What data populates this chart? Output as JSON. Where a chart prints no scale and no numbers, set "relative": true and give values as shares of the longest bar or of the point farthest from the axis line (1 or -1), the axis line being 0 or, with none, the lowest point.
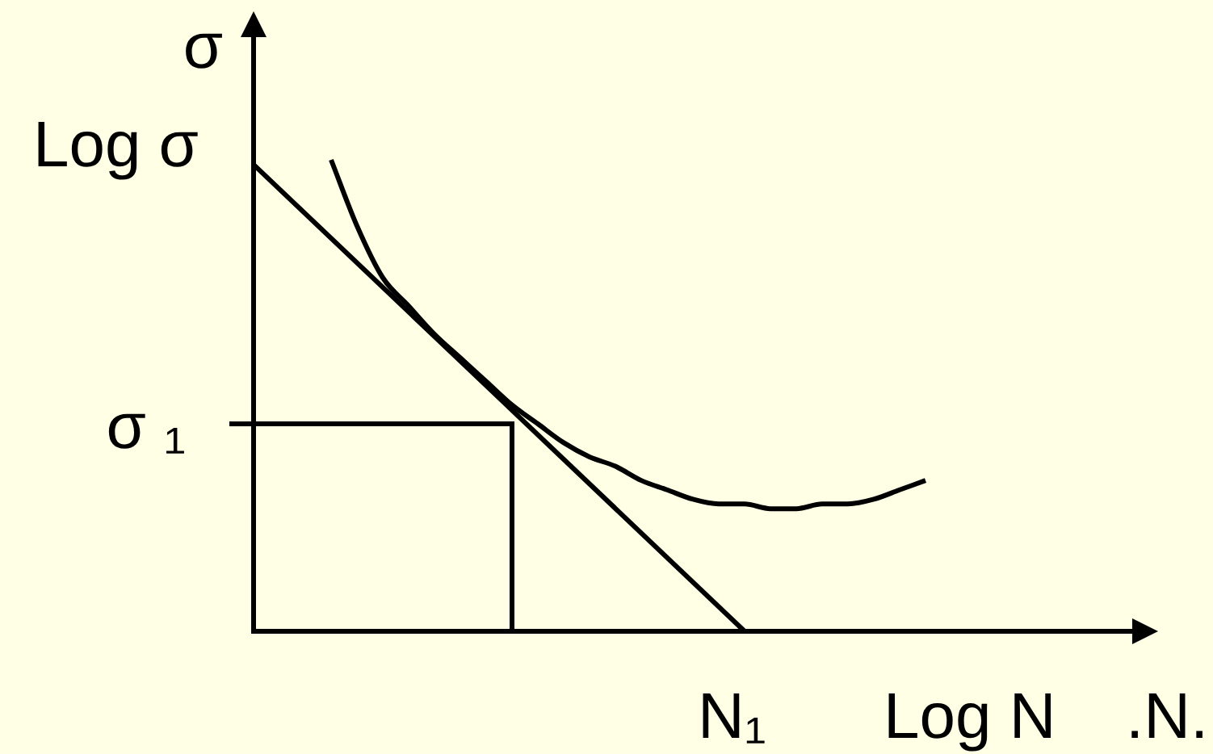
{
  "chart_data": {
    "type": "line",
    "relative": true,
    "categories": [
      null,
      null,
      null,
      null,
      null,
      null,
      null,
      null,
      null,
      null,
      null,
      null,
      null,
      null,
      null,
      null,
      null,
      null,
      null,
      null,
      null,
      null,
      null,
      null,
      null,
      null,
      null,
      null,
      null,
      null,
      null,
      null,
      null,
      null,
      null
    ],
    "series": [
      {
        "color": "#000000",
        "values": [
          null,
          null,
          null,
          1.0,
          0.86,
          0.75,
          0.69,
          0.63,
          0.58,
          0.53,
          0.48,
          0.44,
          0.4,
          0.37,
          0.35,
          0.32,
          0.3,
          0.28,
          0.27,
          0.27,
          0.26,
          0.26,
          0.27,
          0.27,
          0.28,
          0.3,
          0.32,
          null,
          null,
          null,
          null,
          null,
          null,
          null,
          null
        ]
      },
      {
        "color": "#000000",
        "values": [
          0.99,
          null,
          null,
          null,
          null,
          null,
          null,
          null,
          null,
          null,
          null,
          null,
          null,
          null,
          null,
          null,
          null,
          null,
          null,
          0,
          null,
          null,
          null,
          null,
          null,
          null,
          null,
          null,
          null,
          null,
          null,
          null,
          null,
          null,
          null
        ]
      },
      {
        "type": "step",
        "name": "σ ₁",
        "color": "#000000",
        "values": [
          0.44,
          null,
          null,
          null,
          null,
          null,
          null,
          null,
          null,
          null,
          0,
          null,
          null,
          null,
          null,
          null,
          null,
          null,
          null,
          null,
          null,
          null,
          null,
          null,
          null,
          null,
          null,
          null,
          null,
          null,
          null,
          null,
          null,
          null,
          null
        ]
      }
    ],
    "ylabel": "σ",
    "xlabel": "Log N",
    "annotations": [
      "Log σ",
      "N₁",
      ".N."
    ]
  }
}
